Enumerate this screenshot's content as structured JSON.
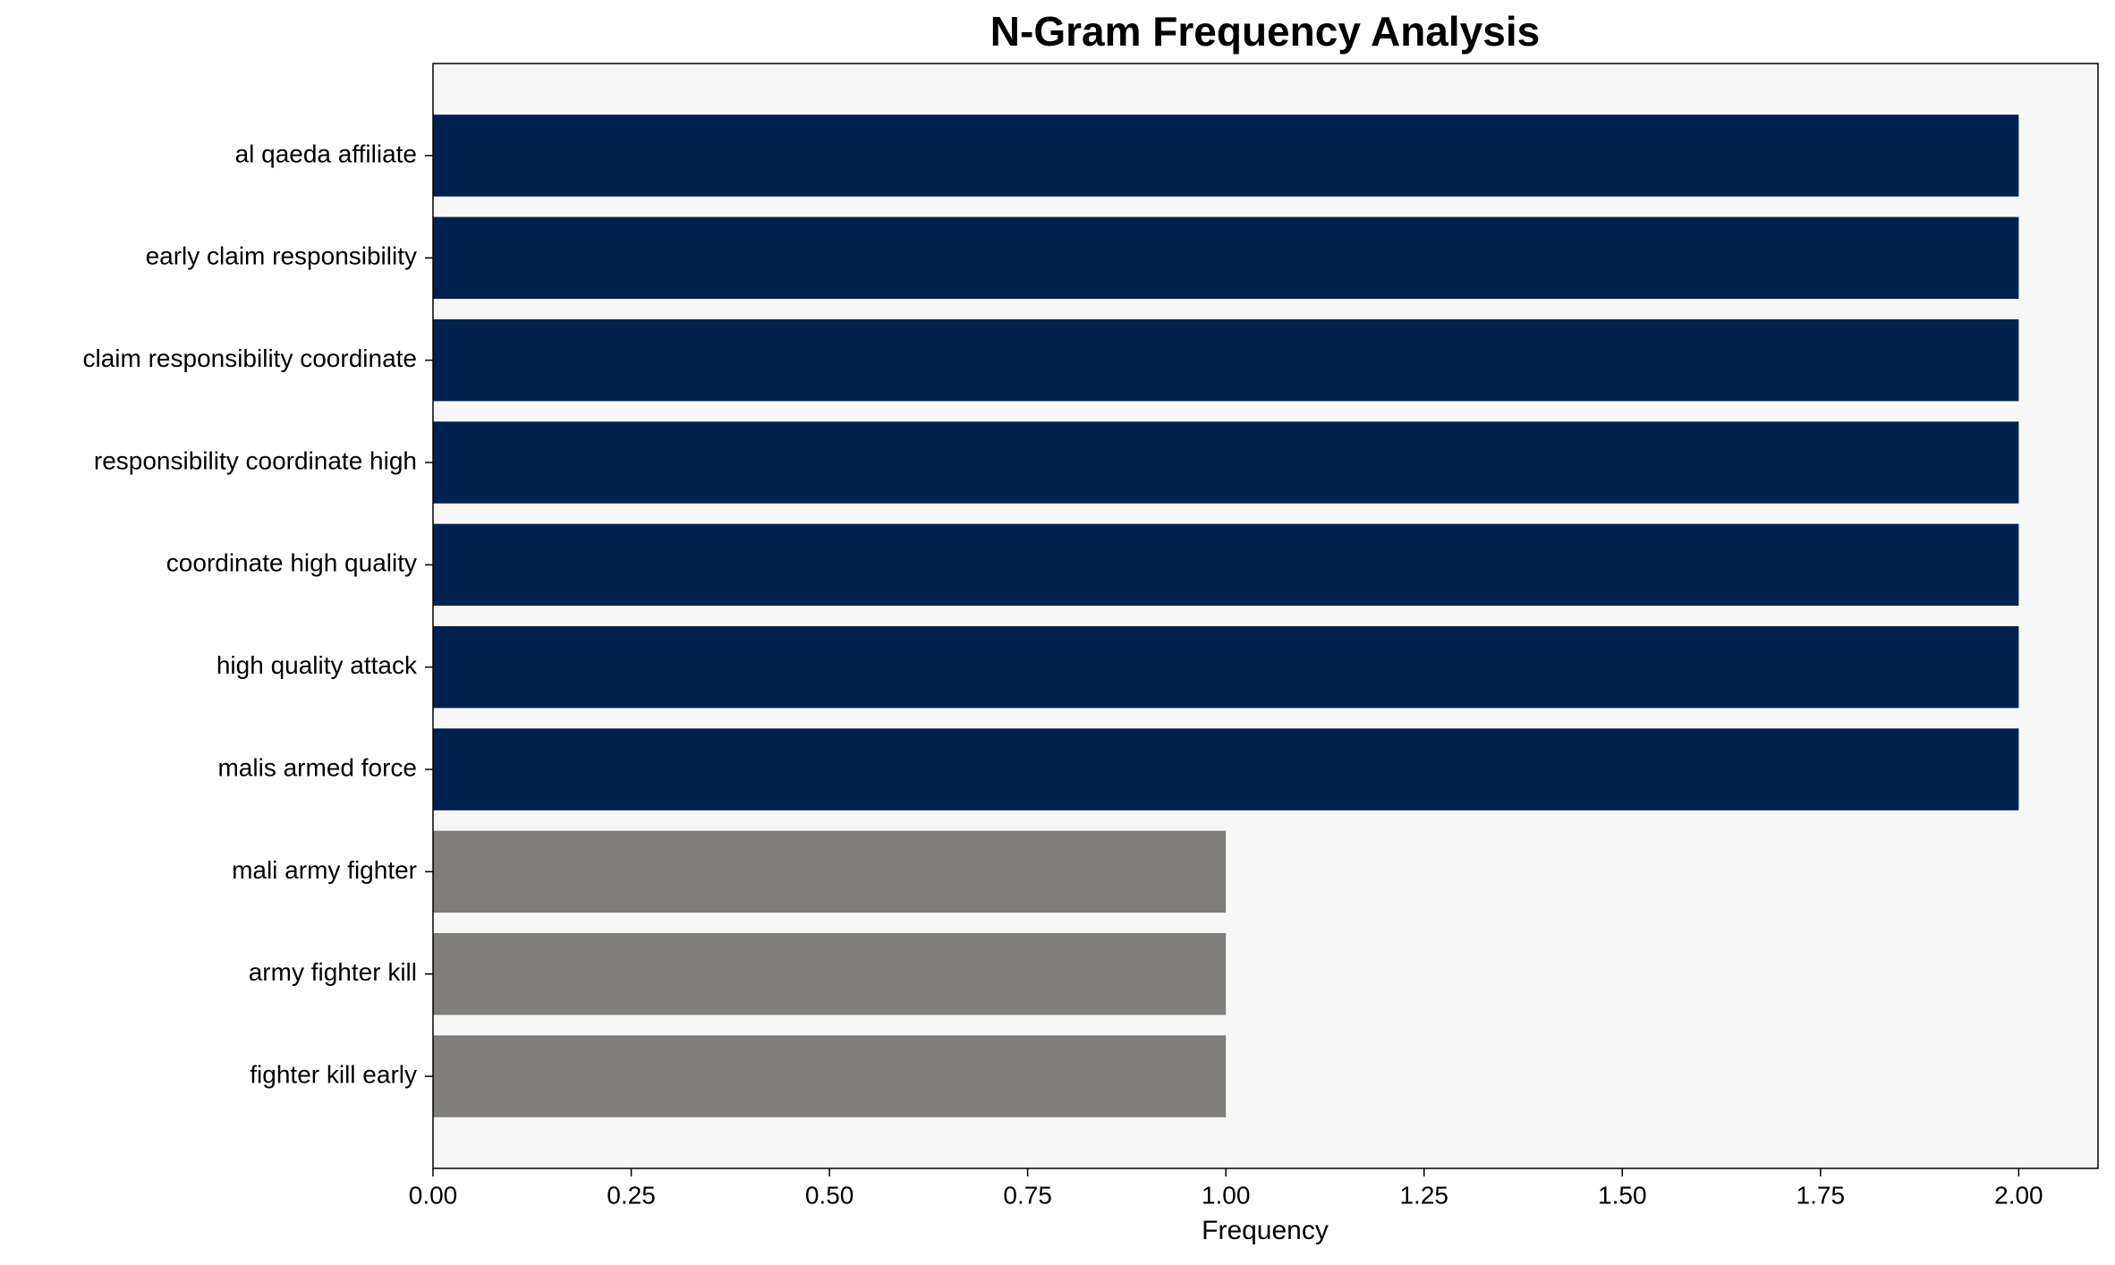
{
  "chart_data": {
    "type": "barh",
    "title": "N-Gram Frequency Analysis",
    "xlabel": "Frequency",
    "categories": [
      "al qaeda affiliate",
      "early claim responsibility",
      "claim responsibility coordinate",
      "responsibility coordinate high",
      "coordinate high quality",
      "high quality attack",
      "malis armed force",
      "mali army fighter",
      "army fighter kill",
      "fighter kill early"
    ],
    "values": [
      2,
      2,
      2,
      2,
      2,
      2,
      2,
      1,
      1,
      1
    ],
    "colors": [
      "#00214d",
      "#00214d",
      "#00214d",
      "#00214d",
      "#00214d",
      "#00214d",
      "#00214d",
      "#7f7e7a",
      "#7f7e7a",
      "#7f7e7a"
    ],
    "xlim": [
      0,
      2.1
    ],
    "xticks": [
      {
        "value": 0,
        "label": "0.00"
      },
      {
        "value": 0.25,
        "label": "0.25"
      },
      {
        "value": 0.5,
        "label": "0.50"
      },
      {
        "value": 0.75,
        "label": "0.75"
      },
      {
        "value": 1,
        "label": "1.00"
      },
      {
        "value": 1.25,
        "label": "1.25"
      },
      {
        "value": 1.5,
        "label": "1.50"
      },
      {
        "value": 1.75,
        "label": "1.75"
      },
      {
        "value": 2,
        "label": "2.00"
      }
    ],
    "background": "#f7f7f7"
  }
}
